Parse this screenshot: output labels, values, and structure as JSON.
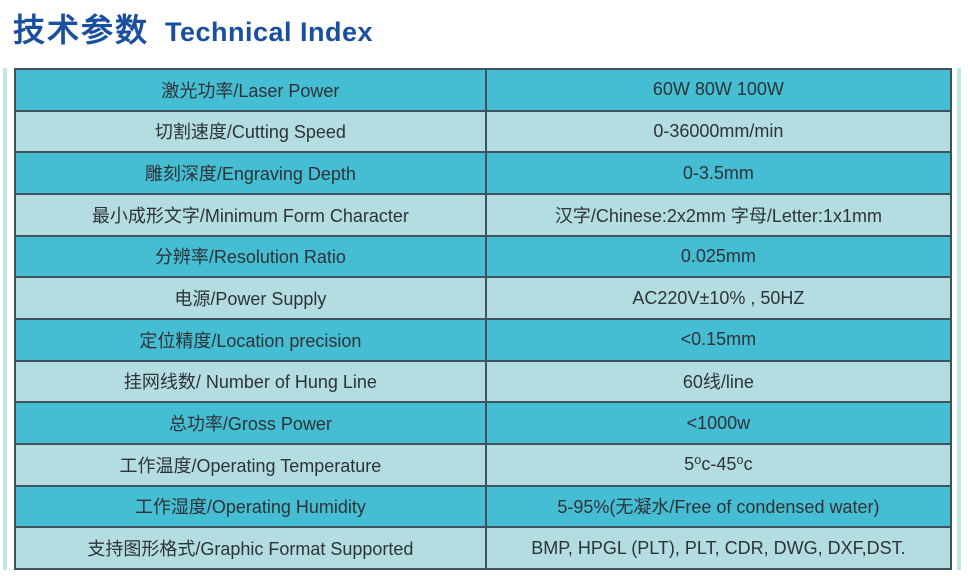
{
  "title": {
    "zh": "技术参数",
    "en": "Technical Index"
  },
  "colors": {
    "title_blue": "#1a4fa0",
    "row_dark_cyan": "#45bdd3",
    "row_light_cyan": "#b3dde1",
    "cell_border": "#41525c",
    "cell_text": "#2e3338",
    "edge_stripe": "#c2e5e8"
  },
  "table": {
    "columns": [
      "parameter",
      "value"
    ],
    "rows": [
      {
        "label": "激光功率/Laser Power",
        "value": "60W  80W 100W"
      },
      {
        "label": "切割速度/Cutting Speed",
        "value": "0-36000mm/min"
      },
      {
        "label": "雕刻深度/Engraving Depth",
        "value": "0-3.5mm"
      },
      {
        "label": "最小成形文字/Minimum Form Character",
        "value": "汉字/Chinese:2x2mm  字母/Letter:1x1mm"
      },
      {
        "label": "分辨率/Resolution Ratio",
        "value": "0.025mm"
      },
      {
        "label": "电源/Power Supply",
        "value": "AC220V±10% , 50HZ"
      },
      {
        "label": "定位精度/Location precision",
        "value": "<0.15mm"
      },
      {
        "label": "挂网线数/ Number of Hung Line",
        "value": "60线/line"
      },
      {
        "label": "总功率/Gross Power",
        "value": "<1000w"
      },
      {
        "label": "工作温度/Operating Temperature",
        "value": "5⁰c-45⁰c"
      },
      {
        "label": "工作湿度/Operating Humidity",
        "value": "5-95%(无凝水/Free of condensed water)"
      },
      {
        "label": "支持图形格式/Graphic Format Supported",
        "value": "BMP, HPGL (PLT), PLT, CDR, DWG, DXF,DST."
      }
    ]
  }
}
